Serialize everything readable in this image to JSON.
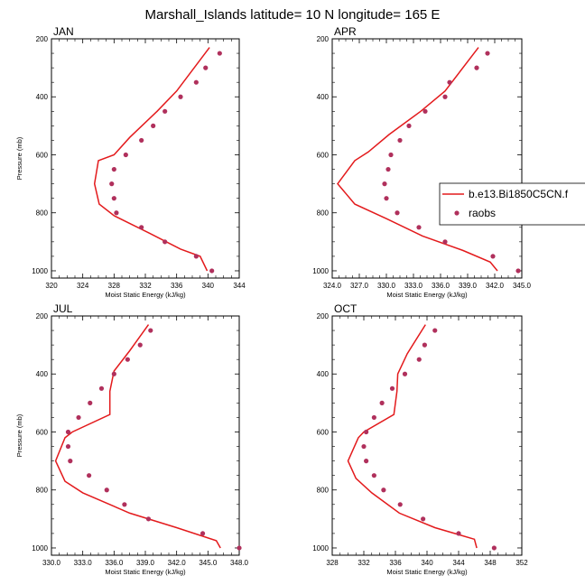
{
  "title": "Marshall_Islands  latitude= 10 N longitude= 165 E",
  "legend": {
    "entries": [
      "b.e13.Bi1850C5CN.f",
      "raobs"
    ],
    "line_color": "#e31a1c",
    "dot_color": "#b0305c"
  },
  "chart_data": [
    {
      "type": "line",
      "panel": "JAN",
      "title": "JAN",
      "xlabel": "Moist Static Energy (kJ/kg)",
      "ylabel": "Pressure (mb)",
      "xlim": [
        320,
        344
      ],
      "ylim": [
        1025,
        200
      ],
      "xticks": [
        320,
        324,
        328,
        332,
        336,
        340,
        344
      ],
      "xtick_labels": [
        "320",
        "324",
        "328",
        "332",
        "336",
        "340",
        "344"
      ],
      "yticks": [
        200,
        400,
        600,
        800,
        1000
      ],
      "series": [
        {
          "name": "b.e13.Bi1850C5CN.f",
          "style": "line",
          "points": [
            [
              340.2,
              230
            ],
            [
              336,
              380
            ],
            [
              333.5,
              450
            ],
            [
              330,
              540
            ],
            [
              328,
              600
            ],
            [
              326,
              620
            ],
            [
              325.5,
              700
            ],
            [
              326.1,
              770
            ],
            [
              328,
              810
            ],
            [
              332.5,
              870
            ],
            [
              336.5,
              925
            ],
            [
              339,
              950
            ],
            [
              339.9,
              1000
            ]
          ]
        },
        {
          "name": "raobs",
          "style": "scatter",
          "points": [
            [
              341.5,
              250
            ],
            [
              339.7,
              300
            ],
            [
              338.5,
              350
            ],
            [
              336.5,
              400
            ],
            [
              334.5,
              450
            ],
            [
              333,
              500
            ],
            [
              331.5,
              550
            ],
            [
              329.5,
              600
            ],
            [
              328,
              650
            ],
            [
              327.7,
              700
            ],
            [
              328,
              750
            ],
            [
              328.3,
              800
            ],
            [
              331.5,
              850
            ],
            [
              334.5,
              900
            ],
            [
              338.5,
              950
            ],
            [
              340.5,
              1000
            ]
          ]
        }
      ]
    },
    {
      "type": "line",
      "panel": "APR",
      "title": "APR",
      "xlabel": "Moist Static Energy (kJ/kg)",
      "ylabel": "",
      "xlim": [
        324,
        345
      ],
      "ylim": [
        1025,
        200
      ],
      "xticks": [
        324,
        327,
        330,
        333,
        336,
        339,
        342,
        345
      ],
      "xtick_labels": [
        "324.0",
        "327.0",
        "330.0",
        "333.0",
        "336.0",
        "339.0",
        "342.0",
        "345.0"
      ],
      "yticks": [
        200,
        400,
        600,
        800,
        1000
      ],
      "series": [
        {
          "name": "b.e13.Bi1850C5CN.f",
          "style": "line",
          "points": [
            [
              340.2,
              230
            ],
            [
              336.5,
              380
            ],
            [
              333.8,
              450
            ],
            [
              330.3,
              530
            ],
            [
              328,
              590
            ],
            [
              326.5,
              620
            ],
            [
              324.6,
              700
            ],
            [
              326.5,
              770
            ],
            [
              330,
              820
            ],
            [
              334,
              880
            ],
            [
              338.5,
              930
            ],
            [
              341.5,
              970
            ],
            [
              342.3,
              1000
            ]
          ]
        },
        {
          "name": "raobs",
          "style": "scatter",
          "points": [
            [
              341.2,
              250
            ],
            [
              340,
              300
            ],
            [
              337,
              350
            ],
            [
              336.5,
              400
            ],
            [
              334.3,
              450
            ],
            [
              332.5,
              500
            ],
            [
              331.5,
              550
            ],
            [
              330.5,
              600
            ],
            [
              330.2,
              650
            ],
            [
              329.8,
              700
            ],
            [
              330,
              750
            ],
            [
              331.2,
              800
            ],
            [
              333.6,
              850
            ],
            [
              336.5,
              900
            ],
            [
              341.8,
              950
            ],
            [
              344.6,
              1000
            ]
          ]
        }
      ]
    },
    {
      "type": "line",
      "panel": "JUL",
      "title": "JUL",
      "xlabel": "Moist Static Energy (kJ/kg)",
      "ylabel": "Pressure (mb)",
      "xlim": [
        330,
        348
      ],
      "ylim": [
        1025,
        200
      ],
      "xticks": [
        330,
        333,
        336,
        339,
        342,
        345,
        348
      ],
      "xtick_labels": [
        "330.0",
        "333.0",
        "336.0",
        "339.0",
        "342.0",
        "345.0",
        "348.0"
      ],
      "yticks": [
        200,
        400,
        600,
        800,
        1000
      ],
      "series": [
        {
          "name": "b.e13.Bi1850C5CN.f",
          "style": "line",
          "points": [
            [
              339.3,
              230
            ],
            [
              337.5,
              320
            ],
            [
              336,
              390
            ],
            [
              335.6,
              460
            ],
            [
              335.6,
              540
            ],
            [
              332,
              600
            ],
            [
              331.3,
              620
            ],
            [
              330.4,
              700
            ],
            [
              331.3,
              770
            ],
            [
              333,
              810
            ],
            [
              337.5,
              880
            ],
            [
              342,
              930
            ],
            [
              345.8,
              975
            ],
            [
              346.2,
              1000
            ]
          ]
        },
        {
          "name": "raobs",
          "style": "scatter",
          "points": [
            [
              339.5,
              250
            ],
            [
              338.5,
              300
            ],
            [
              337.3,
              350
            ],
            [
              336,
              400
            ],
            [
              334.8,
              450
            ],
            [
              333.7,
              500
            ],
            [
              332.6,
              550
            ],
            [
              331.6,
              600
            ],
            [
              331.6,
              650
            ],
            [
              331.8,
              700
            ],
            [
              333.6,
              750
            ],
            [
              335.3,
              800
            ],
            [
              337,
              850
            ],
            [
              339.3,
              900
            ],
            [
              344.5,
              950
            ],
            [
              348,
              1000
            ]
          ]
        }
      ]
    },
    {
      "type": "line",
      "panel": "OCT",
      "title": "OCT",
      "xlabel": "Moist Static Energy (kJ/kg)",
      "ylabel": "",
      "xlim": [
        328,
        352
      ],
      "ylim": [
        1025,
        200
      ],
      "xticks": [
        328,
        332,
        336,
        340,
        344,
        348,
        352
      ],
      "xtick_labels": [
        "328",
        "332",
        "336",
        "340",
        "344",
        "348",
        "352"
      ],
      "yticks": [
        200,
        400,
        600,
        800,
        1000
      ],
      "series": [
        {
          "name": "b.e13.Bi1850C5CN.f",
          "style": "line",
          "points": [
            [
              339.8,
              230
            ],
            [
              337.5,
              330
            ],
            [
              336.3,
              400
            ],
            [
              336.2,
              460
            ],
            [
              335.8,
              540
            ],
            [
              332,
              600
            ],
            [
              331.3,
              620
            ],
            [
              330,
              700
            ],
            [
              331,
              760
            ],
            [
              333,
              810
            ],
            [
              336.5,
              880
            ],
            [
              341,
              930
            ],
            [
              346,
              970
            ],
            [
              346.3,
              1000
            ]
          ]
        },
        {
          "name": "raobs",
          "style": "scatter",
          "points": [
            [
              341,
              250
            ],
            [
              339.7,
              300
            ],
            [
              339,
              350
            ],
            [
              337.2,
              400
            ],
            [
              335.6,
              450
            ],
            [
              334.3,
              500
            ],
            [
              333.3,
              550
            ],
            [
              332.3,
              600
            ],
            [
              332,
              650
            ],
            [
              332.3,
              700
            ],
            [
              333.3,
              750
            ],
            [
              334.5,
              800
            ],
            [
              336.6,
              850
            ],
            [
              339.5,
              900
            ],
            [
              344,
              950
            ],
            [
              348.5,
              1000
            ]
          ]
        }
      ]
    }
  ]
}
